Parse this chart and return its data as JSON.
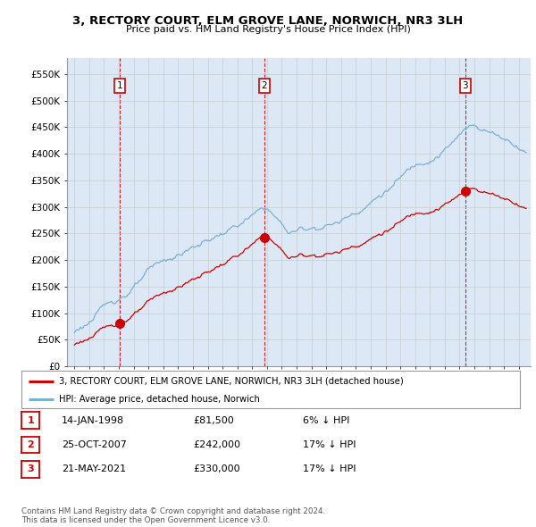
{
  "title": "3, RECTORY COURT, ELM GROVE LANE, NORWICH, NR3 3LH",
  "subtitle": "Price paid vs. HM Land Registry's House Price Index (HPI)",
  "ylim": [
    0,
    580000
  ],
  "yticks": [
    0,
    50000,
    100000,
    150000,
    200000,
    250000,
    300000,
    350000,
    400000,
    450000,
    500000,
    550000
  ],
  "ytick_labels": [
    "£0",
    "£50K",
    "£100K",
    "£150K",
    "£200K",
    "£250K",
    "£300K",
    "£350K",
    "£400K",
    "£450K",
    "£500K",
    "£550K"
  ],
  "sale_dates": [
    1998.04,
    2007.82,
    2021.39
  ],
  "sale_prices": [
    81500,
    242000,
    330000
  ],
  "sale_labels": [
    "1",
    "2",
    "3"
  ],
  "hpi_color": "#7bafd4",
  "price_color": "#cc0000",
  "vline_color": "#cc0000",
  "grid_color": "#cccccc",
  "chart_bg": "#dce8f5",
  "background_color": "#ffffff",
  "legend_label_price": "3, RECTORY COURT, ELM GROVE LANE, NORWICH, NR3 3LH (detached house)",
  "legend_label_hpi": "HPI: Average price, detached house, Norwich",
  "table_entries": [
    {
      "num": "1",
      "date": "14-JAN-1998",
      "price": "£81,500",
      "note": "6% ↓ HPI"
    },
    {
      "num": "2",
      "date": "25-OCT-2007",
      "price": "£242,000",
      "note": "17% ↓ HPI"
    },
    {
      "num": "3",
      "date": "21-MAY-2021",
      "price": "£330,000",
      "note": "17% ↓ HPI"
    }
  ],
  "footer": "Contains HM Land Registry data © Crown copyright and database right 2024.\nThis data is licensed under the Open Government Licence v3.0."
}
